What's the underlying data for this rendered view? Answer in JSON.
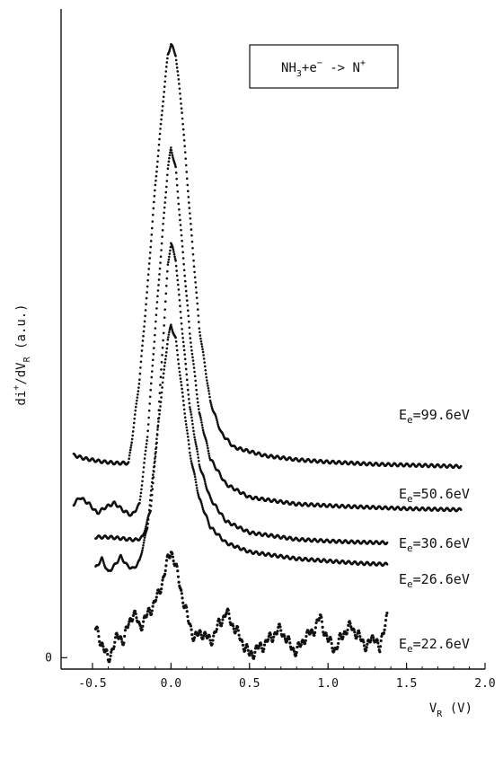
{
  "chart_data": {
    "type": "line",
    "title": "",
    "annotation": {
      "parts": [
        {
          "t": "NH",
          "kind": "normal"
        },
        {
          "t": "3",
          "kind": "sub"
        },
        {
          "t": "+e",
          "kind": "normal"
        },
        {
          "t": "−",
          "kind": "sup"
        },
        {
          "t": " -> N",
          "kind": "normal"
        },
        {
          "t": "+",
          "kind": "sup"
        }
      ]
    },
    "xlabel": {
      "main": "V",
      "sub": "R",
      "unit": " (V)"
    },
    "ylabel": {
      "parts": [
        {
          "t": "di",
          "kind": "normal"
        },
        {
          "t": "+",
          "kind": "sup"
        },
        {
          "t": "/dV",
          "kind": "normal"
        },
        {
          "t": "R",
          "kind": "sub"
        },
        {
          "t": "  (a.u.)",
          "kind": "normal"
        }
      ]
    },
    "xlim": [
      -0.7,
      2.0
    ],
    "x_ticks": [
      {
        "v": -0.5,
        "label": "-0.5"
      },
      {
        "v": 0.0,
        "label": "0.0"
      },
      {
        "v": 0.5,
        "label": "0.5"
      },
      {
        "v": 1.0,
        "label": "1.0"
      },
      {
        "v": 1.5,
        "label": "1.5"
      },
      {
        "v": 2.0,
        "label": "2.0"
      }
    ],
    "y_ticks": [
      {
        "v": 0,
        "label": "0"
      }
    ],
    "ylim": [
      -0.2,
      11.4
    ],
    "series": [
      {
        "label": "E_e=99.6eV",
        "energy_text": "=99.6eV",
        "points": [
          [
            -0.62,
            3.56
          ],
          [
            -0.55,
            3.5
          ],
          [
            -0.45,
            3.45
          ],
          [
            -0.35,
            3.42
          ],
          [
            -0.27,
            3.42
          ],
          [
            -0.25,
            3.8
          ],
          [
            -0.2,
            4.9
          ],
          [
            -0.15,
            6.5
          ],
          [
            -0.1,
            8.3
          ],
          [
            -0.05,
            9.8
          ],
          [
            -0.02,
            10.6
          ],
          [
            0.0,
            10.78
          ],
          [
            0.03,
            10.6
          ],
          [
            0.07,
            9.6
          ],
          [
            0.12,
            7.8
          ],
          [
            0.18,
            5.8
          ],
          [
            0.25,
            4.5
          ],
          [
            0.32,
            3.95
          ],
          [
            0.4,
            3.7
          ],
          [
            0.6,
            3.55
          ],
          [
            0.8,
            3.48
          ],
          [
            1.0,
            3.44
          ],
          [
            1.3,
            3.4
          ],
          [
            1.6,
            3.38
          ],
          [
            1.85,
            3.36
          ]
        ]
      },
      {
        "label": "E_e=50.6eV",
        "energy_text": "=50.6eV",
        "points": [
          [
            -0.62,
            2.7
          ],
          [
            -0.58,
            2.82
          ],
          [
            -0.52,
            2.7
          ],
          [
            -0.47,
            2.54
          ],
          [
            -0.42,
            2.64
          ],
          [
            -0.36,
            2.72
          ],
          [
            -0.3,
            2.58
          ],
          [
            -0.25,
            2.5
          ],
          [
            -0.2,
            2.7
          ],
          [
            -0.15,
            3.9
          ],
          [
            -0.1,
            5.8
          ],
          [
            -0.05,
            7.6
          ],
          [
            -0.02,
            8.6
          ],
          [
            0.0,
            8.96
          ],
          [
            0.03,
            8.6
          ],
          [
            0.07,
            7.3
          ],
          [
            0.12,
            5.7
          ],
          [
            0.18,
            4.3
          ],
          [
            0.25,
            3.5
          ],
          [
            0.35,
            3.05
          ],
          [
            0.5,
            2.82
          ],
          [
            0.8,
            2.7
          ],
          [
            1.1,
            2.66
          ],
          [
            1.5,
            2.62
          ],
          [
            1.85,
            2.6
          ]
        ]
      },
      {
        "label": "E_e=30.6eV",
        "energy_text": "=30.6eV",
        "points": [
          [
            -0.48,
            2.12
          ],
          [
            -0.4,
            2.12
          ],
          [
            -0.33,
            2.1
          ],
          [
            -0.27,
            2.08
          ],
          [
            -0.22,
            2.07
          ],
          [
            -0.18,
            2.12
          ],
          [
            -0.13,
            2.6
          ],
          [
            -0.09,
            3.8
          ],
          [
            -0.05,
            5.6
          ],
          [
            -0.02,
            6.9
          ],
          [
            0.0,
            7.29
          ],
          [
            0.03,
            7.0
          ],
          [
            0.07,
            5.8
          ],
          [
            0.12,
            4.4
          ],
          [
            0.18,
            3.4
          ],
          [
            0.25,
            2.8
          ],
          [
            0.35,
            2.4
          ],
          [
            0.5,
            2.2
          ],
          [
            0.8,
            2.08
          ],
          [
            1.0,
            2.05
          ],
          [
            1.2,
            2.03
          ],
          [
            1.38,
            2.02
          ]
        ]
      },
      {
        "label": "E_e=26.6eV",
        "energy_text": "=26.6eV",
        "points": [
          [
            -0.48,
            1.58
          ],
          [
            -0.44,
            1.74
          ],
          [
            -0.4,
            1.5
          ],
          [
            -0.36,
            1.62
          ],
          [
            -0.32,
            1.78
          ],
          [
            -0.28,
            1.62
          ],
          [
            -0.24,
            1.56
          ],
          [
            -0.2,
            1.7
          ],
          [
            -0.15,
            2.3
          ],
          [
            -0.1,
            3.6
          ],
          [
            -0.05,
            4.9
          ],
          [
            -0.02,
            5.6
          ],
          [
            0.0,
            5.84
          ],
          [
            0.03,
            5.6
          ],
          [
            0.07,
            4.7
          ],
          [
            0.12,
            3.6
          ],
          [
            0.18,
            2.8
          ],
          [
            0.25,
            2.3
          ],
          [
            0.35,
            2.02
          ],
          [
            0.5,
            1.86
          ],
          [
            0.8,
            1.74
          ],
          [
            1.0,
            1.7
          ],
          [
            1.2,
            1.66
          ],
          [
            1.38,
            1.64
          ]
        ]
      },
      {
        "label": "E_e=22.6eV",
        "energy_text": "=22.6eV",
        "points": [
          [
            -0.48,
            0.5
          ],
          [
            -0.44,
            0.26
          ],
          [
            -0.4,
            -0.05
          ],
          [
            -0.37,
            0.2
          ],
          [
            -0.33,
            0.4
          ],
          [
            -0.3,
            0.3
          ],
          [
            -0.27,
            0.6
          ],
          [
            -0.24,
            0.8
          ],
          [
            -0.2,
            0.55
          ],
          [
            -0.16,
            0.7
          ],
          [
            -0.12,
            0.9
          ],
          [
            -0.08,
            1.1
          ],
          [
            -0.05,
            1.4
          ],
          [
            -0.02,
            1.7
          ],
          [
            0.0,
            1.9
          ],
          [
            0.02,
            1.72
          ],
          [
            0.05,
            1.35
          ],
          [
            0.08,
            1.0
          ],
          [
            0.11,
            0.65
          ],
          [
            0.15,
            0.35
          ],
          [
            0.2,
            0.45
          ],
          [
            0.25,
            0.28
          ],
          [
            0.3,
            0.55
          ],
          [
            0.35,
            0.8
          ],
          [
            0.4,
            0.55
          ],
          [
            0.45,
            0.3
          ],
          [
            0.5,
            0.05
          ],
          [
            0.55,
            0.15
          ],
          [
            0.6,
            0.25
          ],
          [
            0.65,
            0.4
          ],
          [
            0.7,
            0.5
          ],
          [
            0.75,
            0.25
          ],
          [
            0.8,
            0.1
          ],
          [
            0.85,
            0.35
          ],
          [
            0.9,
            0.45
          ],
          [
            0.95,
            0.7
          ],
          [
            1.0,
            0.3
          ],
          [
            1.05,
            0.15
          ],
          [
            1.1,
            0.45
          ],
          [
            1.15,
            0.55
          ],
          [
            1.2,
            0.35
          ],
          [
            1.25,
            0.2
          ],
          [
            1.3,
            0.4
          ],
          [
            1.33,
            0.1
          ],
          [
            1.36,
            0.6
          ],
          [
            1.38,
            0.8
          ]
        ]
      }
    ]
  }
}
